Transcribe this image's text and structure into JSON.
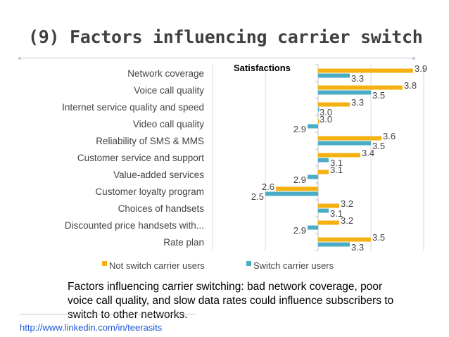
{
  "slide": {
    "title": "(9) Factors influencing carrier switch",
    "caption": "Factors influencing carrier switching: bad network coverage, poor voice call quality, and slow data rates could influence subscribers to switch to other networks.",
    "credit": "http://www.linkedin.com/in/teerasits"
  },
  "chart_data": {
    "type": "bar",
    "orientation": "horizontal",
    "title": "Satisfactions",
    "categories": [
      "Network coverage",
      "Voice call quality",
      "Internet service quality and speed",
      "Video call quality",
      "Reliability of SMS & MMS",
      "Customer service and support",
      "Value-added services",
      "Customer loyalty program",
      "Choices of handsets",
      "Discounted price handsets with...",
      "Rate plan"
    ],
    "series": [
      {
        "name": "Not switch carrier users",
        "color": "#f5b011",
        "values": [
          3.9,
          3.8,
          3.3,
          3.0,
          3.6,
          3.4,
          3.1,
          2.6,
          3.2,
          3.2,
          3.5
        ],
        "labels": [
          "3.9",
          "3.8",
          "3.3",
          "3.0",
          "3.6",
          "3.4",
          "3.1",
          "2.6",
          "3.2",
          "3.2",
          "3.5"
        ]
      },
      {
        "name": "Switch carrier users",
        "color": "#4bacc6",
        "values": [
          3.3,
          3.5,
          3.0,
          2.9,
          3.5,
          3.1,
          2.9,
          2.5,
          3.1,
          2.9,
          3.3
        ],
        "labels": [
          "3.3",
          "3.5",
          "3.0",
          "2.9",
          "3.5",
          "3.1",
          "2.9",
          "2.5",
          "3.1",
          "2.9",
          "3.3"
        ]
      }
    ],
    "xlim": [
      2.0,
      4.0
    ],
    "baseline": 3.0,
    "grid": true,
    "legend": "bottom"
  }
}
